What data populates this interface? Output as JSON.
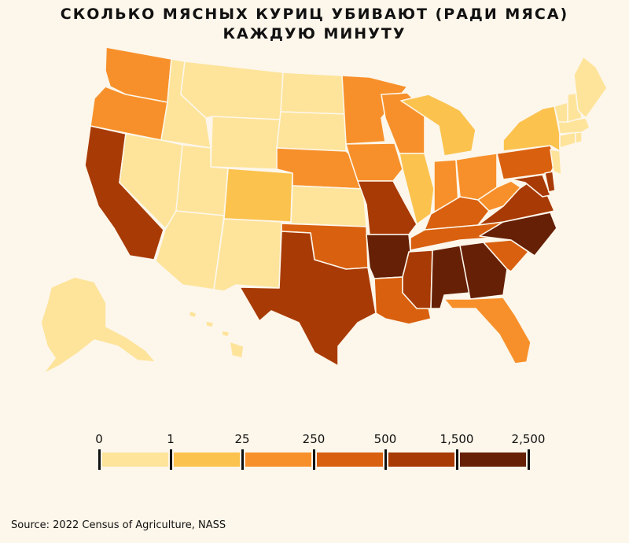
{
  "title": {
    "line1": "СКОЛЬКО МЯСНЫХ КУРИЦ УБИВАЮТ (РАДИ МЯСА)",
    "line2": "КАЖДУЮ МИНУТУ"
  },
  "legend": {
    "breaks": [
      "0",
      "1",
      "25",
      "250",
      "500",
      "1,500",
      "2,500"
    ],
    "colors": [
      "#fde49a",
      "#fbc24d",
      "#f7902a",
      "#d9600f",
      "#a83a05",
      "#652006"
    ]
  },
  "map_classes": {
    "WA": 2,
    "OR": 2,
    "CA": 4,
    "ID": 0,
    "NV": 0,
    "MT": 0,
    "WY": 0,
    "UT": 0,
    "AZ": 0,
    "CO": 1,
    "NM": 0,
    "ND": 0,
    "SD": 0,
    "NE": 2,
    "KS": 0,
    "OK": 3,
    "TX": 4,
    "MN": 2,
    "IA": 2,
    "MO": 4,
    "AR": 5,
    "LA": 3,
    "WI": 2,
    "IL": 1,
    "MI": 1,
    "IN": 2,
    "OH": 2,
    "KY": 3,
    "TN": 3,
    "MS": 4,
    "AL": 5,
    "GA": 5,
    "FL": 2,
    "SC": 3,
    "NC": 5,
    "VA": 4,
    "WV": 2,
    "MD": 4,
    "DE": 4,
    "PA": 3,
    "NY": 1,
    "NJ": 0,
    "CT": 0,
    "RI": 0,
    "MA": 0,
    "VT": 0,
    "NH": 0,
    "ME": 0,
    "AK": 0,
    "HI": 0
  },
  "source": "Source: 2022 Census of Agriculture, NASS"
}
